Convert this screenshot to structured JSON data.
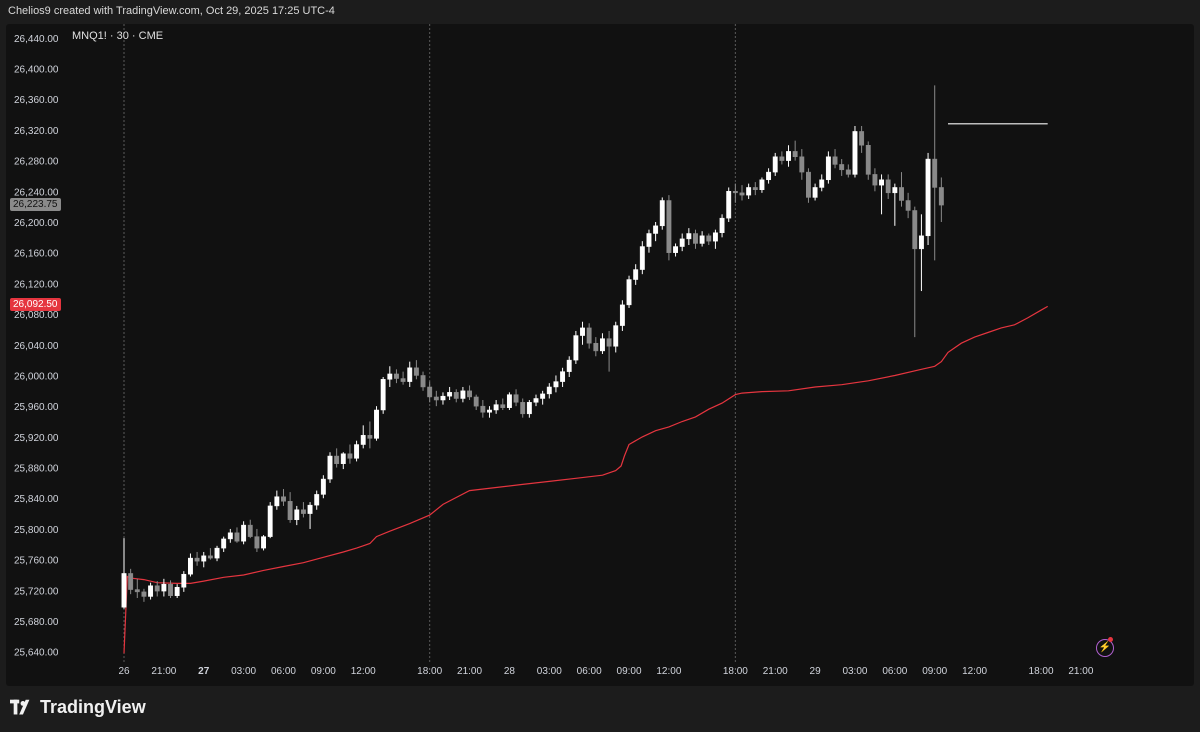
{
  "header": {
    "caption": "Chelios9 created with TradingView.com, Oct 29, 2025 17:25 UTC-4"
  },
  "legend": {
    "symbol": "MNQ1! · 30 · CME"
  },
  "price_tags": {
    "last": "26,223.75",
    "line": "26,092.50"
  },
  "footer": {
    "brand": "TradingView"
  },
  "colors": {
    "up": "#ffffff",
    "down": "#8a8a8a",
    "line": "#e5353f",
    "background": "#111111",
    "axis_text": "#d1d4dc"
  },
  "icons": {
    "bolt": "lightning-icon",
    "logo": "tradingview-logo-icon"
  },
  "chart_data": {
    "type": "candlestick",
    "title": "",
    "y_ticks": [
      "26,440.00",
      "26,400.00",
      "26,360.00",
      "26,320.00",
      "26,280.00",
      "26,240.00",
      "26,200.00",
      "26,160.00",
      "26,120.00",
      "26,080.00",
      "26,040.00",
      "26,000.00",
      "25,960.00",
      "25,920.00",
      "25,880.00",
      "25,840.00",
      "25,800.00",
      "25,760.00",
      "25,720.00",
      "25,680.00",
      "25,640.00"
    ],
    "y_tick_values": [
      26440,
      26400,
      26360,
      26320,
      26280,
      26240,
      26200,
      26160,
      26120,
      26080,
      26040,
      26000,
      25960,
      25920,
      25880,
      25840,
      25800,
      25760,
      25720,
      25680,
      25640
    ],
    "ylim": [
      25624,
      26458
    ],
    "x_range": [
      0,
      155
    ],
    "x_ticks": [
      {
        "label": "26",
        "x": 0,
        "bold": false
      },
      {
        "label": "21:00",
        "x": 6,
        "bold": false
      },
      {
        "label": "27",
        "x": 12,
        "bold": true
      },
      {
        "label": "03:00",
        "x": 18,
        "bold": false
      },
      {
        "label": "06:00",
        "x": 24,
        "bold": false
      },
      {
        "label": "09:00",
        "x": 30,
        "bold": false
      },
      {
        "label": "12:00",
        "x": 36,
        "bold": false
      },
      {
        "label": "18:00",
        "x": 46,
        "bold": false
      },
      {
        "label": "21:00",
        "x": 52,
        "bold": false
      },
      {
        "label": "28",
        "x": 58,
        "bold": false
      },
      {
        "label": "03:00",
        "x": 64,
        "bold": false
      },
      {
        "label": "06:00",
        "x": 70,
        "bold": false
      },
      {
        "label": "09:00",
        "x": 76,
        "bold": false
      },
      {
        "label": "12:00",
        "x": 82,
        "bold": false
      },
      {
        "label": "18:00",
        "x": 92,
        "bold": false
      },
      {
        "label": "21:00",
        "x": 98,
        "bold": false
      },
      {
        "label": "29",
        "x": 104,
        "bold": false
      },
      {
        "label": "03:00",
        "x": 110,
        "bold": false
      },
      {
        "label": "06:00",
        "x": 116,
        "bold": false
      },
      {
        "label": "09:00",
        "x": 122,
        "bold": false
      },
      {
        "label": "12:00",
        "x": 128,
        "bold": false
      },
      {
        "label": "18:00",
        "x": 138,
        "bold": false
      },
      {
        "label": "21:00",
        "x": 144,
        "bold": false
      }
    ],
    "session_breaks": [
      0,
      46,
      92
    ],
    "resistance_line": {
      "value": 26328,
      "x_start": 124,
      "x_end": 139
    },
    "candles": [
      [
        25698,
        25788,
        25696,
        25742
      ],
      [
        25742,
        25748,
        25715,
        25721
      ],
      [
        25721,
        25735,
        25710,
        25718
      ],
      [
        25718,
        25722,
        25705,
        25712
      ],
      [
        25712,
        25730,
        25708,
        25726
      ],
      [
        25726,
        25732,
        25712,
        25719
      ],
      [
        25719,
        25735,
        25712,
        25728
      ],
      [
        25728,
        25733,
        25710,
        25713
      ],
      [
        25713,
        25728,
        25710,
        25724
      ],
      [
        25724,
        25745,
        25718,
        25741
      ],
      [
        25741,
        25768,
        25738,
        25762
      ],
      [
        25762,
        25770,
        25752,
        25758
      ],
      [
        25758,
        25770,
        25750,
        25765
      ],
      [
        25765,
        25775,
        25760,
        25762
      ],
      [
        25762,
        25778,
        25758,
        25775
      ],
      [
        25775,
        25790,
        25770,
        25787
      ],
      [
        25787,
        25800,
        25782,
        25795
      ],
      [
        25795,
        25802,
        25782,
        25784
      ],
      [
        25784,
        25810,
        25780,
        25805
      ],
      [
        25805,
        25812,
        25788,
        25790
      ],
      [
        25790,
        25800,
        25770,
        25775
      ],
      [
        25775,
        25792,
        25772,
        25790
      ],
      [
        25790,
        25835,
        25788,
        25830
      ],
      [
        25830,
        25850,
        25825,
        25842
      ],
      [
        25842,
        25852,
        25830,
        25836
      ],
      [
        25836,
        25848,
        25808,
        25812
      ],
      [
        25812,
        25830,
        25805,
        25825
      ],
      [
        25825,
        25835,
        25815,
        25820
      ],
      [
        25820,
        25835,
        25800,
        25831
      ],
      [
        25831,
        25850,
        25825,
        25845
      ],
      [
        25845,
        25870,
        25840,
        25865
      ],
      [
        25865,
        25900,
        25860,
        25895
      ],
      [
        25895,
        25905,
        25880,
        25885
      ],
      [
        25885,
        25900,
        25878,
        25898
      ],
      [
        25898,
        25910,
        25885,
        25892
      ],
      [
        25892,
        25915,
        25888,
        25910
      ],
      [
        25910,
        25935,
        25905,
        25922
      ],
      [
        25922,
        25940,
        25905,
        25918
      ],
      [
        25918,
        25960,
        25915,
        25955
      ],
      [
        25955,
        25998,
        25950,
        25995
      ],
      [
        25995,
        26012,
        25985,
        26002
      ],
      [
        26002,
        26008,
        25990,
        25996
      ],
      [
        25996,
        26005,
        25988,
        25992
      ],
      [
        25992,
        26018,
        25985,
        26010
      ],
      [
        26010,
        26020,
        25995,
        26000
      ],
      [
        26000,
        26005,
        25980,
        25985
      ],
      [
        25985,
        25992,
        25965,
        25972
      ],
      [
        25972,
        25980,
        25960,
        25968
      ],
      [
        25968,
        25978,
        25962,
        25973
      ],
      [
        25973,
        25985,
        25968,
        25978
      ],
      [
        25978,
        25982,
        25965,
        25970
      ],
      [
        25970,
        25985,
        25965,
        25980
      ],
      [
        25980,
        25987,
        25968,
        25972
      ],
      [
        25972,
        25975,
        25955,
        25960
      ],
      [
        25960,
        25968,
        25945,
        25952
      ],
      [
        25952,
        25960,
        25945,
        25955
      ],
      [
        25955,
        25968,
        25950,
        25962
      ],
      [
        25962,
        25970,
        25955,
        25958
      ],
      [
        25958,
        25978,
        25955,
        25975
      ],
      [
        25975,
        25982,
        25960,
        25965
      ],
      [
        25965,
        25970,
        25945,
        25950
      ],
      [
        25950,
        25968,
        25945,
        25965
      ],
      [
        25965,
        25975,
        25960,
        25970
      ],
      [
        25970,
        25980,
        25962,
        25976
      ],
      [
        25976,
        25990,
        25970,
        25985
      ],
      [
        25985,
        26000,
        25978,
        25992
      ],
      [
        25992,
        26010,
        25985,
        26005
      ],
      [
        26005,
        26025,
        25998,
        26020
      ],
      [
        26020,
        26058,
        26015,
        26052
      ],
      [
        26052,
        26070,
        26040,
        26062
      ],
      [
        26062,
        26068,
        26035,
        26042
      ],
      [
        26042,
        26050,
        26025,
        26032
      ],
      [
        26032,
        26055,
        26028,
        26048
      ],
      [
        26048,
        26058,
        26005,
        26038
      ],
      [
        26038,
        26070,
        26030,
        26065
      ],
      [
        26065,
        26098,
        26058,
        26092
      ],
      [
        26092,
        26130,
        26088,
        26125
      ],
      [
        26125,
        26145,
        26118,
        26138
      ],
      [
        26138,
        26175,
        26132,
        26168
      ],
      [
        26168,
        26190,
        26160,
        26185
      ],
      [
        26185,
        26200,
        26175,
        26195
      ],
      [
        26195,
        26232,
        26190,
        26228
      ],
      [
        26228,
        26235,
        26150,
        26160
      ],
      [
        26160,
        26172,
        26155,
        26168
      ],
      [
        26168,
        26185,
        26162,
        26178
      ],
      [
        26178,
        26192,
        26170,
        26185
      ],
      [
        26185,
        26190,
        26165,
        26172
      ],
      [
        26172,
        26188,
        26168,
        26182
      ],
      [
        26182,
        26185,
        26170,
        26175
      ],
      [
        26175,
        26190,
        26165,
        26186
      ],
      [
        26186,
        26210,
        26180,
        26205
      ],
      [
        26205,
        26245,
        26200,
        26240
      ],
      [
        26240,
        26250,
        26225,
        26238
      ],
      [
        26238,
        26248,
        26228,
        26235
      ],
      [
        26235,
        26250,
        26230,
        26245
      ],
      [
        26245,
        26252,
        26235,
        26242
      ],
      [
        26242,
        26258,
        26238,
        26255
      ],
      [
        26255,
        26270,
        26250,
        26265
      ],
      [
        26265,
        26290,
        26260,
        26285
      ],
      [
        26285,
        26292,
        26275,
        26280
      ],
      [
        26280,
        26300,
        26272,
        26292
      ],
      [
        26292,
        26306,
        26280,
        26285
      ],
      [
        26285,
        26295,
        26255,
        26265
      ],
      [
        26265,
        26270,
        26225,
        26232
      ],
      [
        26232,
        26250,
        26228,
        26245
      ],
      [
        26245,
        26262,
        26240,
        26255
      ],
      [
        26255,
        26292,
        26250,
        26285
      ],
      [
        26285,
        26295,
        26270,
        26275
      ],
      [
        26275,
        26282,
        26260,
        26268
      ],
      [
        26268,
        26275,
        26258,
        26262
      ],
      [
        26262,
        26325,
        26258,
        26318
      ],
      [
        26318,
        26325,
        26290,
        26300
      ],
      [
        26300,
        26305,
        26255,
        26262
      ],
      [
        26262,
        26270,
        26240,
        26248
      ],
      [
        26248,
        26262,
        26210,
        26255
      ],
      [
        26255,
        26262,
        26230,
        26238
      ],
      [
        26238,
        26250,
        26195,
        26245
      ],
      [
        26245,
        26265,
        26220,
        26228
      ],
      [
        26228,
        26238,
        26205,
        26215
      ],
      [
        26215,
        26220,
        26050,
        26165
      ],
      [
        26165,
        26210,
        26110,
        26182
      ],
      [
        26182,
        26290,
        26170,
        26282
      ],
      [
        26282,
        26378,
        26150,
        26245
      ],
      [
        26245,
        26258,
        26200,
        26222
      ]
    ],
    "line": {
      "name": "",
      "color": "#e5353f",
      "x": [
        0,
        0.5,
        1,
        3,
        5,
        8,
        10,
        12,
        15,
        18,
        21,
        24,
        27,
        30,
        33,
        35,
        36,
        37,
        38,
        40,
        43,
        46,
        48,
        52,
        56,
        60,
        64,
        68,
        72,
        74,
        74.8,
        75.3,
        76,
        78,
        80,
        82,
        84,
        86,
        88,
        90,
        92,
        93,
        96,
        100,
        104,
        108,
        112,
        116,
        120,
        122,
        123,
        124,
        126,
        128,
        130,
        132,
        134,
        136,
        138,
        139
      ],
      "y": [
        25638,
        25738,
        25736,
        25734,
        25730,
        25729,
        25729,
        25732,
        25737,
        25740,
        25746,
        25751,
        25756,
        25763,
        25770,
        25775,
        25778,
        25781,
        25790,
        25797,
        25807,
        25818,
        25832,
        25850,
        25854,
        25858,
        25862,
        25866,
        25870,
        25876,
        25882,
        25895,
        25910,
        25920,
        25928,
        25933,
        25940,
        25946,
        25956,
        25964,
        25975,
        25977,
        25979,
        25980,
        25985,
        25988,
        25993,
        26000,
        26008,
        26012,
        26018,
        26030,
        26042,
        26050,
        26056,
        26062,
        26066,
        26075,
        26085,
        26090
      ]
    }
  }
}
